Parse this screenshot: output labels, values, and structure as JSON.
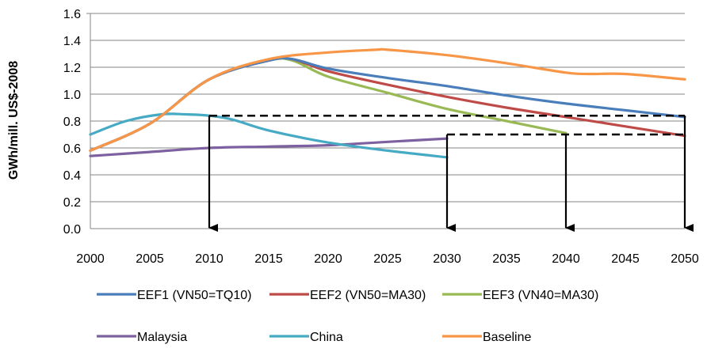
{
  "chart_data": {
    "type": "line",
    "title": "",
    "xlabel": "",
    "ylabel": "GWh/mill. US$-2008",
    "xlim": [
      2000,
      2050
    ],
    "ylim": [
      0.0,
      1.6
    ],
    "x_ticks": [
      "2000",
      "2005",
      "2010",
      "2015",
      "2020",
      "2025",
      "2030",
      "2035",
      "2040",
      "2045",
      "2050"
    ],
    "y_ticks": [
      "0.0",
      "0.2",
      "0.4",
      "0.6",
      "0.8",
      "1.0",
      "1.2",
      "1.4",
      "1.6"
    ],
    "grid": "horizontal",
    "legend_position": "bottom",
    "series": [
      {
        "name": "EEF1 (VN50=TQ10)",
        "color": "#4a7ebb",
        "x": [
          2000,
          2005,
          2010,
          2015,
          2017,
          2020,
          2025,
          2030,
          2035,
          2040,
          2045,
          2050
        ],
        "y": [
          0.58,
          0.78,
          1.11,
          1.25,
          1.26,
          1.19,
          1.12,
          1.06,
          0.99,
          0.93,
          0.88,
          0.83
        ]
      },
      {
        "name": "EEF2 (VN50=MA30)",
        "color": "#be4b48",
        "x": [
          2000,
          2005,
          2010,
          2015,
          2017,
          2020,
          2025,
          2030,
          2035,
          2040,
          2045,
          2050
        ],
        "y": [
          0.58,
          0.78,
          1.11,
          1.25,
          1.26,
          1.17,
          1.07,
          0.98,
          0.9,
          0.83,
          0.76,
          0.69
        ]
      },
      {
        "name": "EEF3 (VN40=MA30)",
        "color": "#98b954",
        "x": [
          2000,
          2005,
          2010,
          2015,
          2017,
          2020,
          2025,
          2030,
          2035,
          2040
        ],
        "y": [
          0.58,
          0.78,
          1.11,
          1.25,
          1.25,
          1.13,
          1.01,
          0.89,
          0.8,
          0.71
        ]
      },
      {
        "name": "Malaysia",
        "color": "#7d60a0",
        "x": [
          2000,
          2005,
          2010,
          2015,
          2020,
          2025,
          2030
        ],
        "y": [
          0.54,
          0.57,
          0.6,
          0.61,
          0.62,
          0.645,
          0.67
        ]
      },
      {
        "name": "China",
        "color": "#46aac5",
        "x": [
          2000,
          2003,
          2006,
          2008,
          2010,
          2012,
          2015,
          2020,
          2025,
          2030
        ],
        "y": [
          0.7,
          0.8,
          0.85,
          0.85,
          0.84,
          0.81,
          0.73,
          0.64,
          0.58,
          0.53
        ]
      },
      {
        "name": "Baseline",
        "color": "#f79646",
        "x": [
          2000,
          2005,
          2010,
          2015,
          2020,
          2024,
          2025,
          2030,
          2035,
          2040,
          2042,
          2045,
          2050
        ],
        "y": [
          0.58,
          0.78,
          1.11,
          1.26,
          1.31,
          1.33,
          1.33,
          1.29,
          1.23,
          1.16,
          1.15,
          1.15,
          1.11
        ]
      }
    ],
    "annotations": {
      "dashed_lines": [
        {
          "x": [
            2010,
            2050
          ],
          "y": 0.84
        },
        {
          "x": [
            2030,
            2050
          ],
          "y": 0.7
        }
      ],
      "arrows": [
        {
          "x": 2010,
          "from_y": 0.84,
          "to_y": 0.0
        },
        {
          "x": 2030,
          "from_y": 0.7,
          "to_y": 0.0
        },
        {
          "x": 2040,
          "from_y": 0.7,
          "to_y": 0.0
        },
        {
          "x": 2050,
          "from_y": 0.84,
          "to_y": 0.0
        }
      ]
    }
  }
}
